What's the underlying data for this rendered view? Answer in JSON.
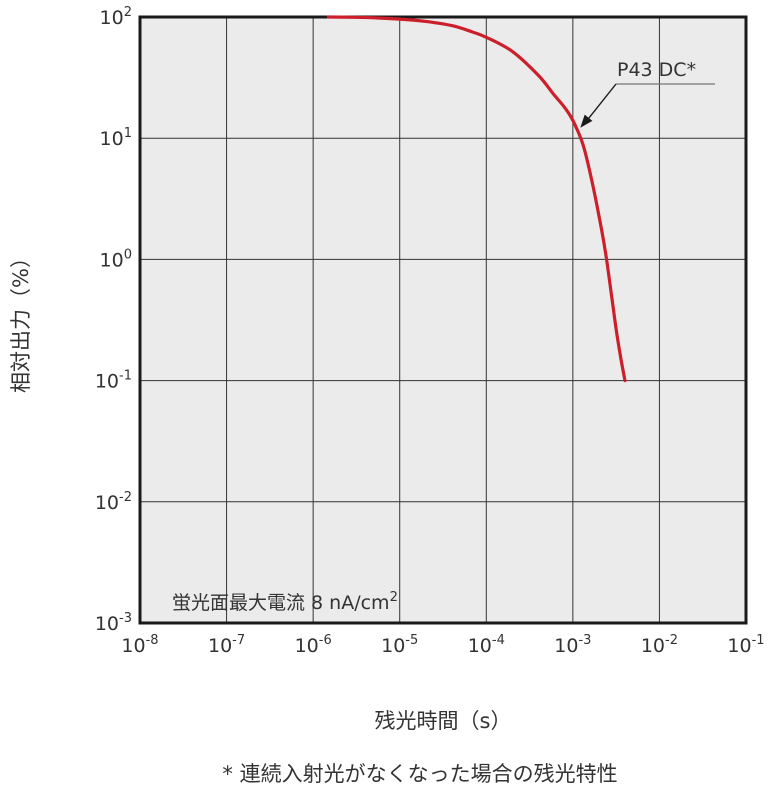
{
  "chart_data": {
    "type": "line",
    "xscale": "log",
    "yscale": "log",
    "xlim": [
      1e-08,
      0.1
    ],
    "ylim": [
      0.001,
      100
    ],
    "grid": true,
    "xlabel": "残光時間（s）",
    "ylabel": "相対出力（%）",
    "x_ticks": [
      {
        "base": "10",
        "exp": "-8",
        "value": 1e-08
      },
      {
        "base": "10",
        "exp": "-7",
        "value": 1e-07
      },
      {
        "base": "10",
        "exp": "-6",
        "value": 1e-06
      },
      {
        "base": "10",
        "exp": "-5",
        "value": 1e-05
      },
      {
        "base": "10",
        "exp": "-4",
        "value": 0.0001
      },
      {
        "base": "10",
        "exp": "-3",
        "value": 0.001
      },
      {
        "base": "10",
        "exp": "-2",
        "value": 0.01
      },
      {
        "base": "10",
        "exp": "-1",
        "value": 0.1
      }
    ],
    "y_ticks": [
      {
        "base": "10",
        "exp": "2",
        "value": 100
      },
      {
        "base": "10",
        "exp": "1",
        "value": 10
      },
      {
        "base": "10",
        "exp": "0",
        "value": 1
      },
      {
        "base": "10",
        "exp": "-1",
        "value": 0.1
      },
      {
        "base": "10",
        "exp": "-2",
        "value": 0.01
      },
      {
        "base": "10",
        "exp": "-3",
        "value": 0.001
      }
    ],
    "series": [
      {
        "name": "P43 DC*",
        "color": "#cc1f2b",
        "x": [
          1.5e-06,
          3e-06,
          6e-06,
          1e-05,
          2e-05,
          4e-05,
          7e-05,
          0.0001,
          0.0002,
          0.0004,
          0.0006,
          0.0008,
          0.001,
          0.0013,
          0.0016,
          0.002,
          0.0024,
          0.0028,
          0.0032,
          0.0036,
          0.004
        ],
        "y": [
          100,
          99.5,
          98,
          96,
          92,
          85,
          75,
          68,
          52,
          33,
          23,
          18,
          14,
          9,
          5,
          2.3,
          1.1,
          0.5,
          0.25,
          0.15,
          0.1
        ]
      }
    ],
    "annotations": [
      {
        "text": "P43 DC*",
        "target_x": 0.0012,
        "target_y": 12
      },
      {
        "text": "蛍光面最大電流 8 nA/cm",
        "sup": "2"
      }
    ],
    "footnote": "* 連続入射光がなくなった場合の残光特性"
  }
}
